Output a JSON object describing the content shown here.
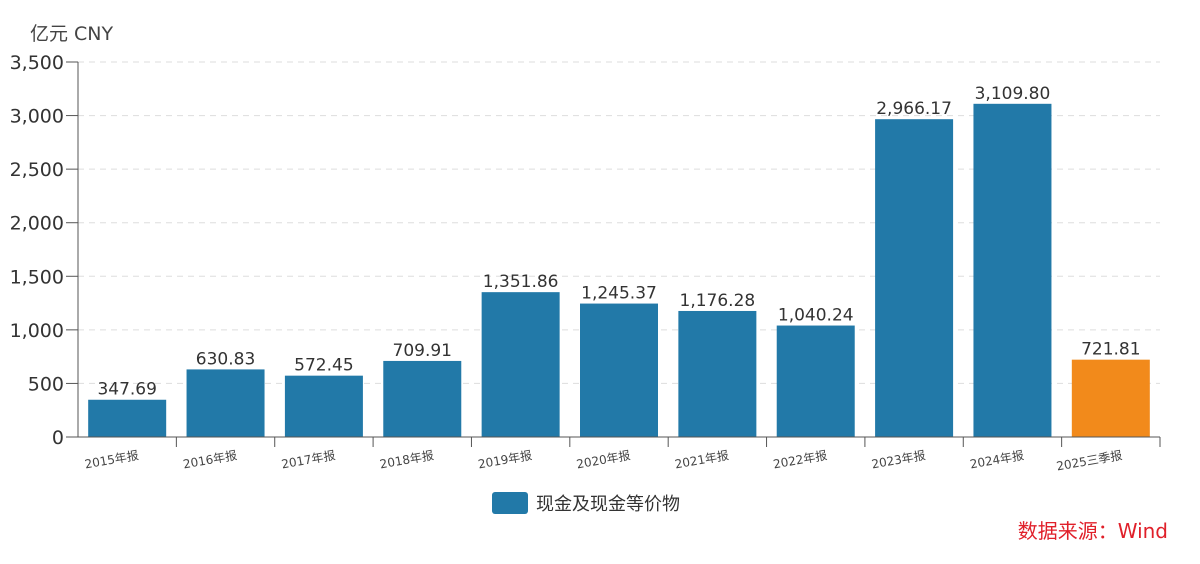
{
  "chart_data": {
    "type": "bar",
    "unit_label": "亿元  CNY",
    "categories": [
      "2015年报",
      "2016年报",
      "2017年报",
      "2018年报",
      "2019年报",
      "2020年报",
      "2021年报",
      "2022年报",
      "2023年报",
      "2024年报",
      "2025三季报"
    ],
    "series": [
      {
        "name": "现金及现金等价物",
        "values": [
          347.69,
          630.83,
          572.45,
          709.91,
          1351.86,
          1245.37,
          1176.28,
          1040.24,
          2966.17,
          3109.8,
          721.81
        ]
      }
    ],
    "data_labels": [
      "347.69",
      "630.83",
      "572.45",
      "709.91",
      "1,351.86",
      "1,245.37",
      "1,176.28",
      "1,040.24",
      "2,966.17",
      "3,109.80",
      "721.81"
    ],
    "yticks": [
      0,
      500,
      1000,
      1500,
      2000,
      2500,
      3000,
      3500
    ],
    "ytick_labels": [
      "0",
      "500",
      "1,000",
      "1,500",
      "2,000",
      "2,500",
      "3,000",
      "3,500"
    ],
    "ylim": [
      0,
      3500
    ],
    "grid": "horizontal dashed",
    "legend_position": "bottom",
    "colors": {
      "bar": "#2279a8",
      "highlight": "#f28a1b",
      "highlight_index": 10
    },
    "source": "数据来源：Wind",
    "source_color": "#e0202a"
  }
}
